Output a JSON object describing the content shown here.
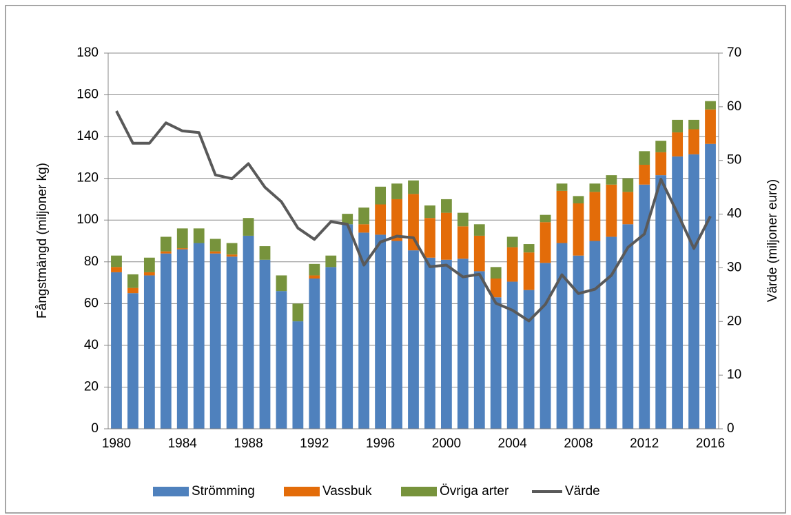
{
  "chart_data": {
    "type": "bar",
    "stacked": true,
    "categories": [
      "1980",
      null,
      null,
      null,
      "1984",
      null,
      null,
      null,
      "1988",
      null,
      null,
      null,
      "1992",
      null,
      null,
      null,
      "1996",
      null,
      null,
      null,
      "2000",
      null,
      null,
      null,
      "2004",
      null,
      null,
      null,
      "2008",
      null,
      null,
      null,
      "2012",
      null,
      null,
      null,
      "2016"
    ],
    "ylabel": "Fångstmängd (miljoner kg)",
    "y2label": "Värde (miljoner euro)",
    "ylim": [
      0,
      180
    ],
    "yticks": [
      0,
      20,
      40,
      60,
      80,
      100,
      120,
      140,
      160,
      180
    ],
    "y2lim": [
      0,
      70
    ],
    "y2ticks": [
      0,
      10,
      20,
      30,
      40,
      50,
      60,
      70
    ],
    "grid": true,
    "legend": "bottom",
    "series": [
      {
        "name": "Strömming",
        "color": "#4f81bd",
        "values": [
          75,
          65,
          73.5,
          84,
          86,
          89,
          84,
          82.5,
          92.5,
          81,
          66,
          51.5,
          72,
          77.5,
          98,
          94,
          93,
          90,
          85.5,
          82,
          81,
          81.5,
          75.5,
          63,
          70.5,
          66.5,
          79.5,
          89,
          83,
          90,
          92,
          98,
          117,
          121.5,
          130.5,
          131.5,
          136.5
        ]
      },
      {
        "name": "Vassbuk",
        "color": "#e36c09",
        "values": [
          2.5,
          2.5,
          1.5,
          1,
          0.5,
          0,
          1,
          1,
          0,
          0,
          0,
          0,
          1.5,
          0,
          0,
          4,
          14.5,
          20,
          27,
          19,
          22.5,
          15.5,
          17,
          9,
          16.5,
          18,
          19.5,
          25,
          25,
          23.5,
          25,
          15.5,
          9.5,
          11,
          11.5,
          12,
          16.5
        ]
      },
      {
        "name": "Övriga arter",
        "color": "#77933c",
        "values": [
          5.5,
          6.5,
          7,
          7,
          9.5,
          7,
          6,
          5.5,
          8.5,
          6.5,
          7.5,
          8.5,
          5.5,
          5.5,
          5,
          8,
          8.5,
          7.5,
          6.5,
          6,
          6.5,
          6.5,
          5.5,
          5.5,
          5,
          4,
          3.5,
          3.5,
          3.5,
          4,
          4.5,
          6.5,
          6.5,
          5.5,
          6,
          4.5,
          4
        ]
      },
      {
        "name": "Värde",
        "type": "line",
        "axis": "y2",
        "color": "#595959",
        "values": [
          59.2,
          53.2,
          53.2,
          57,
          55.5,
          55.2,
          47.3,
          46.6,
          49.4,
          45,
          42.3,
          37.4,
          35.3,
          38.6,
          38.1,
          30.5,
          34.8,
          35.9,
          35.6,
          30.2,
          30.5,
          28.3,
          28.8,
          23.4,
          22.1,
          20.1,
          23.2,
          28.7,
          25.2,
          26,
          28.6,
          33.8,
          36.3,
          46.5,
          40.2,
          33.6,
          39.6
        ]
      }
    ]
  }
}
